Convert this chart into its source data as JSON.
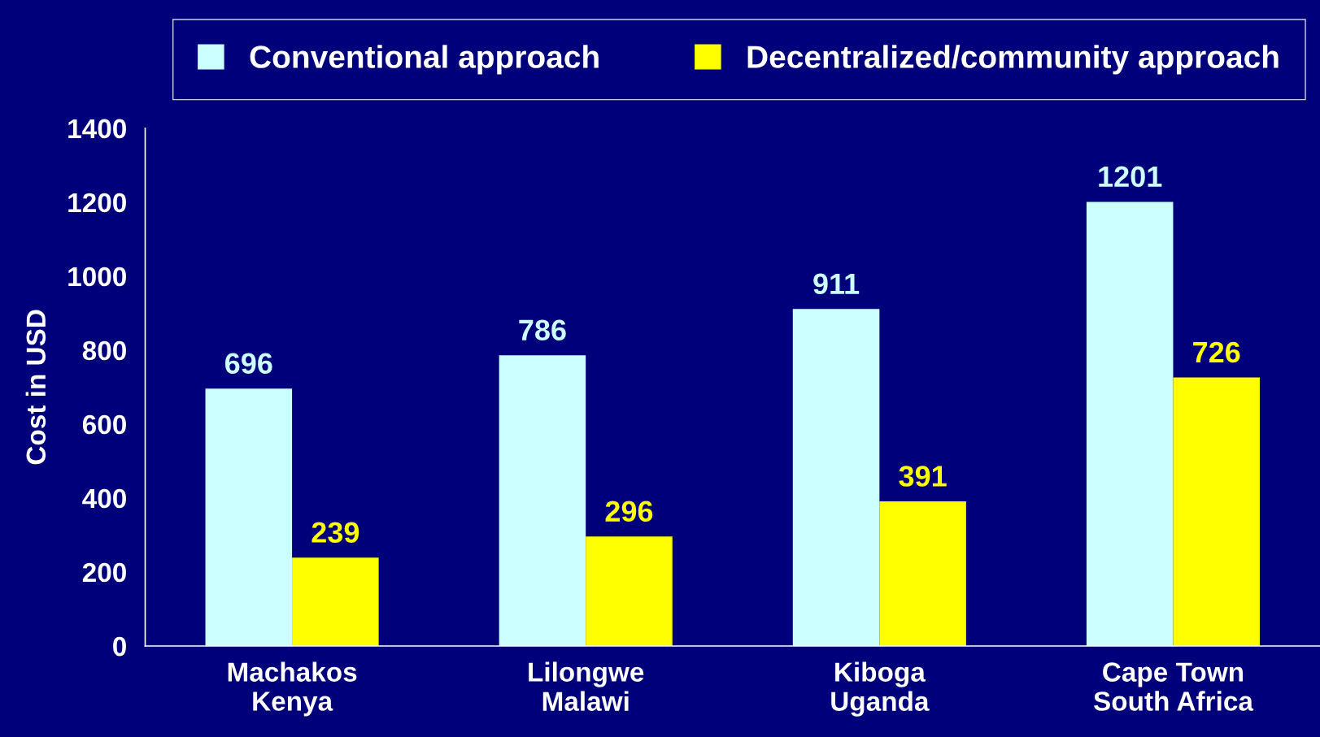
{
  "chart_data": {
    "type": "bar",
    "ylabel": "Cost in USD",
    "categories": [
      "Machakos\nKenya",
      "Lilongwe\nMalawi",
      "Kiboga\nUganda",
      "Cape Town\nSouth Africa"
    ],
    "series": [
      {
        "name": "Conventional approach",
        "color": "#ccffff",
        "values": [
          696,
          786,
          911,
          1201
        ]
      },
      {
        "name": "Decentralized/community approach",
        "color": "#ffff00",
        "values": [
          239,
          296,
          391,
          726
        ]
      }
    ],
    "ylim": [
      0,
      1400
    ],
    "yticks": [
      0,
      200,
      400,
      600,
      800,
      1000,
      1200,
      1400
    ],
    "grid": false,
    "legend": "top",
    "data_labels": true
  }
}
